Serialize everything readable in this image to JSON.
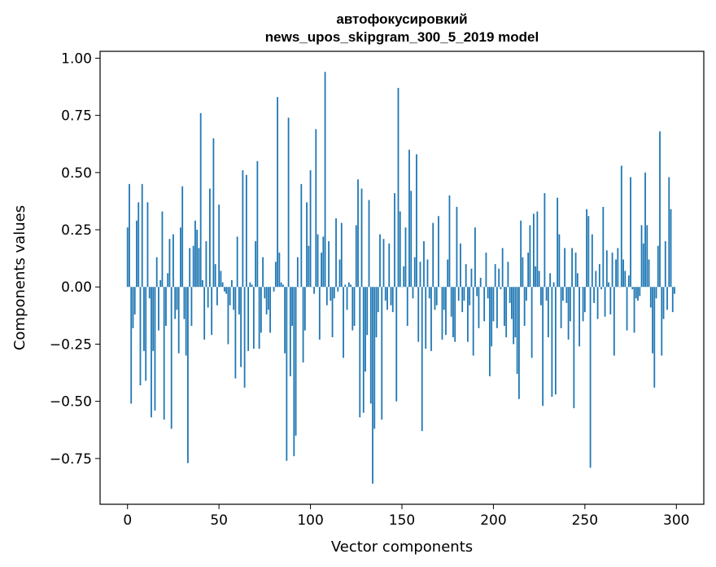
{
  "chart_data": {
    "type": "bar",
    "title_line1": "автофокусировкий",
    "title_line2": "news_upos_skipgram_300_5_2019 model",
    "xlabel": "Vector components",
    "ylabel": "Components values",
    "xlim": [
      -15,
      315
    ],
    "ylim": [
      -0.95,
      1.03
    ],
    "x_ticks": [
      0,
      50,
      100,
      150,
      200,
      250,
      300
    ],
    "x_tick_labels": [
      "0",
      "50",
      "100",
      "150",
      "200",
      "250",
      "300"
    ],
    "y_ticks": [
      1.0,
      0.75,
      0.5,
      0.25,
      0.0,
      -0.25,
      -0.5,
      -0.75
    ],
    "y_tick_labels": [
      "1.00",
      "0.75",
      "0.50",
      "0.25",
      "0.00",
      "−0.25",
      "−0.50",
      "−0.75"
    ],
    "bar_color": "#1f77b4",
    "grid": false,
    "x": "0..299",
    "values": [
      0.26,
      0.45,
      -0.51,
      -0.18,
      -0.12,
      0.29,
      0.37,
      -0.43,
      0.45,
      -0.28,
      -0.41,
      0.37,
      -0.05,
      -0.57,
      -0.28,
      -0.54,
      0.13,
      -0.19,
      0.03,
      0.33,
      -0.58,
      -0.17,
      0.06,
      0.21,
      -0.62,
      0.23,
      -0.14,
      -0.1,
      -0.29,
      0.26,
      0.44,
      -0.14,
      -0.3,
      -0.77,
      0.17,
      -0.17,
      0.18,
      0.29,
      0.25,
      0.17,
      0.76,
      0.03,
      -0.23,
      0.2,
      -0.09,
      0.43,
      -0.21,
      0.65,
      0.1,
      -0.08,
      0.36,
      0.07,
      0.02,
      -0.02,
      -0.03,
      -0.25,
      -0.08,
      0.03,
      -0.1,
      -0.4,
      0.22,
      -0.12,
      -0.35,
      0.51,
      -0.44,
      0.49,
      -0.28,
      0.02,
      0.01,
      -0.27,
      0.2,
      0.55,
      -0.27,
      -0.2,
      0.13,
      -0.05,
      -0.12,
      -0.1,
      -0.2,
      0.0,
      -0.02,
      0.11,
      0.83,
      0.15,
      0.02,
      0.01,
      -0.29,
      -0.76,
      0.74,
      -0.39,
      -0.17,
      -0.74,
      -0.65,
      0.13,
      0.0,
      0.45,
      -0.33,
      -0.19,
      0.37,
      0.18,
      0.51,
      0.0,
      -0.03,
      0.69,
      0.23,
      -0.23,
      0.15,
      0.22,
      0.94,
      -0.08,
      0.2,
      -0.06,
      -0.22,
      -0.05,
      0.3,
      -0.02,
      0.12,
      0.28,
      -0.31,
      0.01,
      -0.1,
      0.02,
      0.01,
      -0.19,
      -0.17,
      0.27,
      0.47,
      -0.57,
      0.43,
      -0.55,
      -0.37,
      -0.21,
      0.38,
      -0.51,
      -0.86,
      -0.62,
      -0.22,
      -0.11,
      0.23,
      -0.58,
      0.21,
      -0.06,
      -0.1,
      0.19,
      -0.08,
      -0.11,
      0.41,
      -0.5,
      0.87,
      0.33,
      0.0,
      0.09,
      0.26,
      -0.17,
      0.6,
      0.42,
      -0.05,
      0.13,
      0.58,
      -0.24,
      0.11,
      -0.63,
      0.2,
      -0.27,
      0.12,
      -0.05,
      -0.28,
      0.28,
      -0.1,
      -0.08,
      0.31,
      0.0,
      -0.23,
      -0.1,
      -0.21,
      0.12,
      0.4,
      -0.13,
      -0.22,
      -0.24,
      0.35,
      -0.06,
      0.19,
      -0.11,
      -0.06,
      0.1,
      -0.24,
      -0.08,
      0.08,
      -0.3,
      0.26,
      -0.04,
      -0.18,
      0.04,
      0.0,
      -0.15,
      0.15,
      -0.05,
      -0.39,
      -0.26,
      -0.15,
      0.1,
      -0.18,
      0.08,
      -0.01,
      0.17,
      -0.17,
      -0.22,
      0.11,
      -0.07,
      -0.14,
      -0.25,
      -0.22,
      -0.38,
      -0.49,
      0.29,
      0.13,
      -0.17,
      -0.06,
      0.15,
      0.27,
      -0.31,
      0.32,
      0.09,
      0.33,
      0.07,
      -0.08,
      -0.52,
      0.41,
      -0.06,
      -0.22,
      0.06,
      -0.48,
      0.02,
      -0.47,
      0.39,
      0.23,
      -0.18,
      -0.06,
      0.17,
      -0.07,
      -0.23,
      -0.15,
      0.17,
      -0.53,
      0.15,
      0.06,
      -0.26,
      0.0,
      -0.15,
      -0.11,
      0.34,
      0.31,
      -0.79,
      0.23,
      -0.07,
      0.07,
      -0.14,
      0.1,
      -0.01,
      0.35,
      -0.13,
      0.16,
      0.02,
      -0.12,
      0.15,
      -0.3,
      0.12,
      0.17,
      0.0,
      0.53,
      0.12,
      0.07,
      -0.19,
      0.05,
      0.48,
      -0.01,
      -0.2,
      -0.05,
      -0.06,
      -0.04,
      0.27,
      0.19,
      0.5,
      0.27,
      0.12,
      -0.09,
      -0.29,
      -0.44,
      -0.05,
      0.18,
      0.68,
      -0.3,
      -0.14,
      0.2,
      -0.1,
      0.48,
      0.34,
      -0.11,
      -0.03
    ]
  }
}
